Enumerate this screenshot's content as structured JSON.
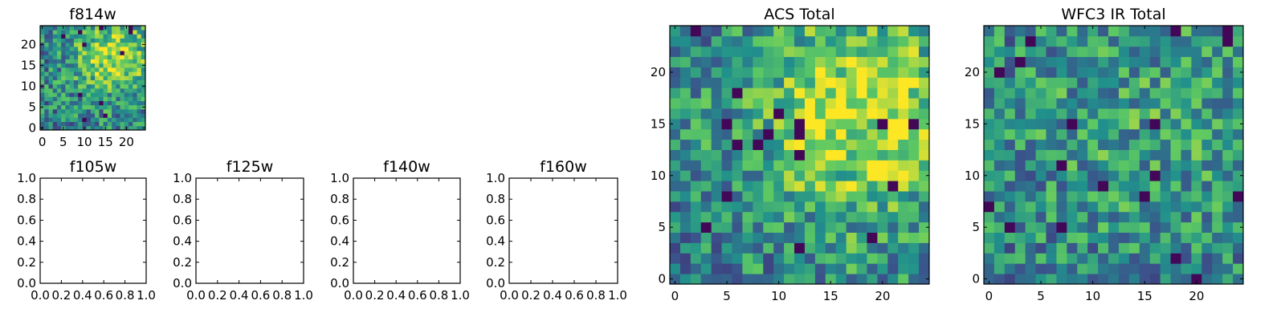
{
  "chart_data": [
    {
      "id": "f814w",
      "type": "heatmap",
      "title": "f814w",
      "image": true,
      "seed": 11,
      "hot": [
        17,
        17
      ],
      "hotStrength": 0.42,
      "spread": 6.5,
      "xlim": [
        -0.5,
        24.5
      ],
      "ylim": [
        -0.5,
        24.5
      ],
      "xticks": [
        0,
        5,
        10,
        15,
        20
      ],
      "yticks": [
        0,
        5,
        10,
        15,
        20
      ],
      "xticklabels": [
        "0",
        "5",
        "10",
        "15",
        "20"
      ],
      "yticklabels": [
        "0",
        "5",
        "10",
        "15",
        "20"
      ]
    },
    {
      "id": "f105w",
      "type": "empty",
      "title": "f105w",
      "image": false,
      "xlim": [
        0,
        1
      ],
      "ylim": [
        0,
        1
      ],
      "xticks": [
        0,
        0.2,
        0.4,
        0.6,
        0.8,
        1.0
      ],
      "yticks": [
        0,
        0.2,
        0.4,
        0.6,
        0.8,
        1.0
      ],
      "xticklabels": [
        "0.0",
        "0.2",
        "0.4",
        "0.6",
        "0.8",
        "1.0"
      ],
      "yticklabels": [
        "0.0",
        "0.2",
        "0.4",
        "0.6",
        "0.8",
        "1.0"
      ]
    },
    {
      "id": "f125w",
      "type": "empty",
      "title": "f125w",
      "image": false,
      "xlim": [
        0,
        1
      ],
      "ylim": [
        0,
        1
      ],
      "xticks": [
        0,
        0.2,
        0.4,
        0.6,
        0.8,
        1.0
      ],
      "yticks": [
        0,
        0.2,
        0.4,
        0.6,
        0.8,
        1.0
      ],
      "xticklabels": [
        "0.0",
        "0.2",
        "0.4",
        "0.6",
        "0.8",
        "1.0"
      ],
      "yticklabels": [
        "0.0",
        "0.2",
        "0.4",
        "0.6",
        "0.8",
        "1.0"
      ]
    },
    {
      "id": "f140w",
      "type": "empty",
      "title": "f140w",
      "image": false,
      "xlim": [
        0,
        1
      ],
      "ylim": [
        0,
        1
      ],
      "xticks": [
        0,
        0.2,
        0.4,
        0.6,
        0.8,
        1.0
      ],
      "yticks": [
        0,
        0.2,
        0.4,
        0.6,
        0.8,
        1.0
      ],
      "xticklabels": [
        "0.0",
        "0.2",
        "0.4",
        "0.6",
        "0.8",
        "1.0"
      ],
      "yticklabels": [
        "0.0",
        "0.2",
        "0.4",
        "0.6",
        "0.8",
        "1.0"
      ]
    },
    {
      "id": "f160w",
      "type": "empty",
      "title": "f160w",
      "image": false,
      "xlim": [
        0,
        1
      ],
      "ylim": [
        0,
        1
      ],
      "xticks": [
        0,
        0.2,
        0.4,
        0.6,
        0.8,
        1.0
      ],
      "yticks": [
        0,
        0.2,
        0.4,
        0.6,
        0.8,
        1.0
      ],
      "xticklabels": [
        "0.0",
        "0.2",
        "0.4",
        "0.6",
        "0.8",
        "1.0"
      ],
      "yticklabels": [
        "0.0",
        "0.2",
        "0.4",
        "0.6",
        "0.8",
        "1.0"
      ]
    },
    {
      "id": "acs-total",
      "type": "heatmap",
      "title": "ACS Total",
      "image": true,
      "seed": 23,
      "hot": [
        18,
        16
      ],
      "hotStrength": 0.45,
      "spread": 7.5,
      "xlim": [
        -0.5,
        24.5
      ],
      "ylim": [
        -0.5,
        24.5
      ],
      "xticks": [
        0,
        5,
        10,
        15,
        20
      ],
      "yticks": [
        0,
        5,
        10,
        15,
        20
      ],
      "xticklabels": [
        "0",
        "5",
        "10",
        "15",
        "20"
      ],
      "yticklabels": [
        "0",
        "5",
        "10",
        "15",
        "20"
      ]
    },
    {
      "id": "wfc3-ir-total",
      "type": "heatmap",
      "title": "WFC3 IR Total",
      "image": true,
      "seed": 37,
      "hot": [
        15,
        15
      ],
      "hotStrength": 0.12,
      "spread": 9,
      "xlim": [
        -0.5,
        24.5
      ],
      "ylim": [
        -0.5,
        24.5
      ],
      "xticks": [
        0,
        5,
        10,
        15,
        20
      ],
      "yticks": [
        0,
        5,
        10,
        15,
        20
      ],
      "xticklabels": [
        "0",
        "5",
        "10",
        "15",
        "20"
      ],
      "yticklabels": [
        "0",
        "5",
        "10",
        "15",
        "20"
      ]
    }
  ],
  "colormap": [
    "#440154",
    "#3b528b",
    "#21918c",
    "#5ec962",
    "#fde725"
  ]
}
